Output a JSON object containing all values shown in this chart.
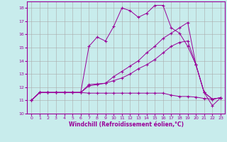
{
  "background_color": "#c8ecec",
  "line_color": "#990099",
  "grid_color": "#aaaaaa",
  "xlabel": "Windchill (Refroidissement éolien,°C)",
  "xlim": [
    -0.5,
    23.5
  ],
  "ylim": [
    10,
    18.5
  ],
  "yticks": [
    10,
    11,
    12,
    13,
    14,
    15,
    16,
    17,
    18
  ],
  "xticks": [
    0,
    1,
    2,
    3,
    4,
    5,
    6,
    7,
    8,
    9,
    10,
    11,
    12,
    13,
    14,
    15,
    16,
    17,
    18,
    19,
    20,
    21,
    22,
    23
  ],
  "series": [
    {
      "x": [
        0,
        1,
        2,
        3,
        4,
        5,
        6,
        7,
        8,
        9,
        10,
        11,
        12,
        13,
        14,
        15,
        16,
        17,
        18,
        19,
        20,
        21,
        22,
        23
      ],
      "y": [
        11.0,
        11.6,
        11.6,
        11.6,
        11.6,
        11.6,
        11.6,
        11.55,
        11.55,
        11.55,
        11.55,
        11.55,
        11.55,
        11.55,
        11.55,
        11.55,
        11.55,
        11.4,
        11.3,
        11.3,
        11.25,
        11.15,
        11.1,
        11.2
      ]
    },
    {
      "x": [
        0,
        1,
        2,
        3,
        4,
        5,
        6,
        7,
        8,
        9,
        10,
        11,
        12,
        13,
        14,
        15,
        16,
        17,
        18,
        19,
        20,
        21,
        22,
        23
      ],
      "y": [
        11.0,
        11.6,
        11.6,
        11.6,
        11.6,
        11.6,
        11.6,
        12.1,
        12.2,
        12.3,
        12.5,
        12.7,
        13.0,
        13.4,
        13.7,
        14.1,
        14.6,
        15.1,
        15.4,
        15.5,
        13.7,
        11.6,
        11.1,
        11.2
      ]
    },
    {
      "x": [
        0,
        1,
        2,
        3,
        4,
        5,
        6,
        7,
        8,
        9,
        10,
        11,
        12,
        13,
        14,
        15,
        16,
        17,
        18,
        19,
        20,
        21,
        22,
        23
      ],
      "y": [
        11.0,
        11.6,
        11.6,
        11.6,
        11.6,
        11.6,
        11.6,
        12.2,
        12.25,
        12.3,
        12.8,
        13.2,
        13.6,
        14.0,
        14.6,
        15.1,
        15.7,
        16.1,
        16.5,
        16.9,
        13.7,
        11.6,
        11.1,
        11.2
      ]
    },
    {
      "x": [
        0,
        1,
        2,
        3,
        4,
        5,
        6,
        7,
        8,
        9,
        10,
        11,
        12,
        13,
        14,
        15,
        16,
        17,
        18,
        19,
        20,
        21,
        22,
        23
      ],
      "y": [
        11.0,
        11.6,
        11.6,
        11.6,
        11.6,
        11.6,
        11.6,
        15.1,
        15.8,
        15.5,
        16.6,
        18.0,
        17.8,
        17.3,
        17.6,
        18.2,
        18.2,
        16.5,
        16.1,
        15.1,
        13.7,
        11.6,
        10.6,
        11.2
      ]
    }
  ]
}
